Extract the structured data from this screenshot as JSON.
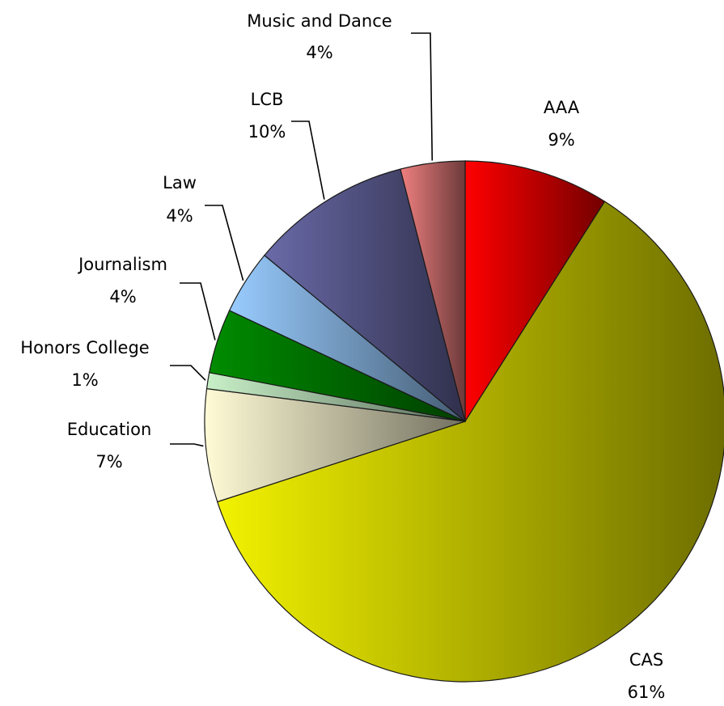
{
  "chart_data": {
    "type": "pie",
    "title": "",
    "legend": "none",
    "slices": [
      {
        "name": "AAA",
        "value": 9,
        "label": "9%",
        "color": "#ff0000"
      },
      {
        "name": "CAS",
        "value": 61,
        "label": "61%",
        "color": "#f2f200"
      },
      {
        "name": "Education",
        "value": 7,
        "label": "7%",
        "color": "#fffbd6"
      },
      {
        "name": "Honors College",
        "value": 1,
        "label": "1%",
        "color": "#c8f0c8"
      },
      {
        "name": "Journalism",
        "value": 4,
        "label": "4%",
        "color": "#008c00"
      },
      {
        "name": "Law",
        "value": 4,
        "label": "4%",
        "color": "#99ccff"
      },
      {
        "name": "LCB",
        "value": 10,
        "label": "10%",
        "color": "#6a6aa8"
      },
      {
        "name": "Music and Dance",
        "value": 4,
        "label": "4%",
        "color": "#f08080"
      }
    ]
  }
}
